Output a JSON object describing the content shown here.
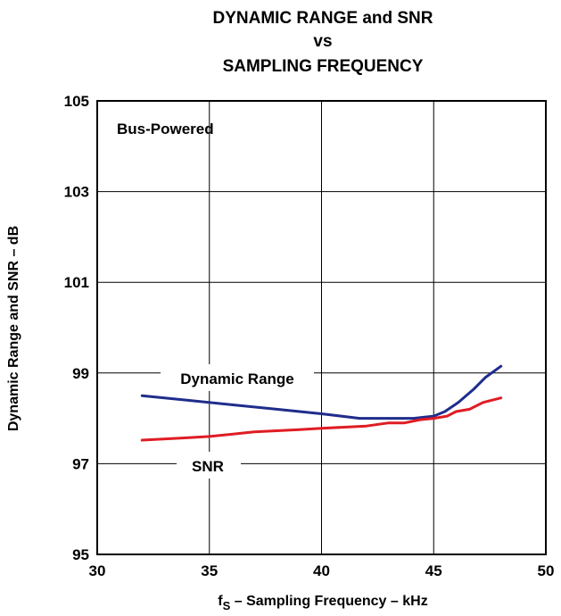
{
  "chart_data": {
    "type": "line",
    "title_lines": [
      "DYNAMIC RANGE and SNR",
      "vs",
      "SAMPLING FREQUENCY"
    ],
    "xlabel": {
      "prefix": "f",
      "subscript": "S",
      "text": " – Sampling Frequency – kHz"
    },
    "ylabel": "Dynamic Range and SNR – dB",
    "xlim": [
      30,
      50
    ],
    "ylim": [
      95,
      105
    ],
    "xticks": [
      30,
      35,
      40,
      45,
      50
    ],
    "yticks": [
      95,
      97,
      99,
      101,
      103,
      105
    ],
    "grid": true,
    "annotation": "Bus-Powered",
    "series": [
      {
        "name": "Dynamic Range",
        "color": "#1f2d8c",
        "x": [
          32,
          34,
          36,
          38,
          40,
          41.7,
          43,
          44.1,
          45,
          45.5,
          46.1,
          46.8,
          47.3,
          48
        ],
        "y": [
          98.5,
          98.4,
          98.3,
          98.2,
          98.1,
          98.0,
          98.0,
          98.0,
          98.05,
          98.15,
          98.35,
          98.65,
          98.9,
          99.15
        ]
      },
      {
        "name": "SNR",
        "color": "#e01c24",
        "x": [
          32,
          34,
          35,
          37,
          39,
          40,
          42,
          43,
          43.7,
          44.4,
          45,
          45.6,
          46,
          46.6,
          47.2,
          48
        ],
        "y": [
          97.52,
          97.57,
          97.6,
          97.7,
          97.75,
          97.78,
          97.83,
          97.9,
          97.9,
          97.97,
          98.0,
          98.05,
          98.15,
          98.2,
          98.35,
          98.45
        ]
      }
    ]
  }
}
